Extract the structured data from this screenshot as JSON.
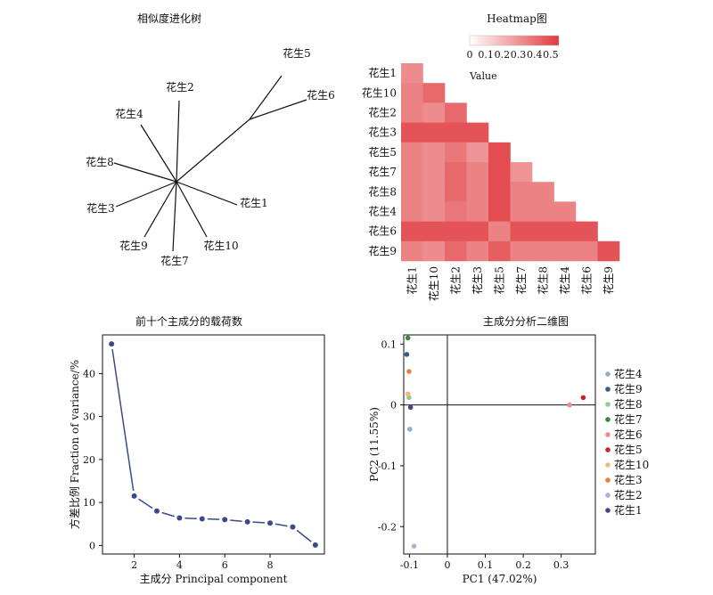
{
  "chart_data": [
    {
      "type": "tree",
      "title": "相似度进化树",
      "leaves": [
        "花生5",
        "花生6",
        "花生2",
        "花生4",
        "花生8",
        "花生3",
        "花生9",
        "花生7",
        "花生10",
        "花生1"
      ],
      "edges": [
        [
          "root",
          "n56"
        ],
        [
          "n56",
          "花生5"
        ],
        [
          "n56",
          "花生6"
        ],
        [
          "root",
          "花生2"
        ],
        [
          "root",
          "花生4"
        ],
        [
          "root",
          "花生8"
        ],
        [
          "root",
          "花生3"
        ],
        [
          "root",
          "花生9"
        ],
        [
          "root",
          "花生7"
        ],
        [
          "root",
          "花生10"
        ],
        [
          "root",
          "花生1"
        ]
      ]
    },
    {
      "type": "heatmap",
      "title": "Heatmap图",
      "rows": [
        "花生1",
        "花生10",
        "花生2",
        "花生3",
        "花生5",
        "花生7",
        "花生8",
        "花生4",
        "花生6",
        "花生9"
      ],
      "cols": [
        "花生1",
        "花生10",
        "花生2",
        "花生3",
        "花生5",
        "花生7",
        "花生8",
        "花生4",
        "花生6",
        "花生9"
      ],
      "values": [
        [
          0.32
        ],
        [
          0.35,
          0.42
        ],
        [
          0.35,
          0.32,
          0.42
        ],
        [
          0.48,
          0.48,
          0.48,
          0.48
        ],
        [
          0.35,
          0.32,
          0.38,
          0.3,
          0.5
        ],
        [
          0.35,
          0.32,
          0.42,
          0.35,
          0.5,
          0.3
        ],
        [
          0.35,
          0.32,
          0.42,
          0.35,
          0.5,
          0.35,
          0.35
        ],
        [
          0.35,
          0.32,
          0.38,
          0.35,
          0.5,
          0.35,
          0.35,
          0.35
        ],
        [
          0.48,
          0.48,
          0.48,
          0.48,
          0.35,
          0.48,
          0.48,
          0.48,
          0.48
        ],
        [
          0.35,
          0.32,
          0.42,
          0.35,
          0.45,
          0.35,
          0.35,
          0.35,
          0.35,
          0.48
        ]
      ],
      "colorbar": {
        "ticks": [
          "0",
          "0.1",
          "0.2",
          "0.3",
          "0.4",
          "0.5"
        ],
        "label": "Value",
        "range": [
          0,
          0.55
        ],
        "low_color": "#ffffff",
        "high_color": "#e03a3e"
      }
    },
    {
      "type": "line",
      "title": "前十个主成分的载荷数",
      "xlabel": "主成分 Principal component",
      "ylabel": "方差比例 Fraction of variance/%",
      "x": [
        1,
        2,
        3,
        4,
        5,
        6,
        7,
        8,
        9,
        10
      ],
      "values": [
        46.9,
        11.5,
        8.0,
        6.4,
        6.2,
        6.0,
        5.5,
        5.2,
        4.3,
        0.1
      ],
      "xticks": [
        "2",
        "4",
        "6",
        "8"
      ],
      "yticks": [
        "0",
        "10",
        "20",
        "30",
        "40"
      ],
      "xlim": [
        0.6,
        10.4
      ],
      "ylim": [
        -2,
        49
      ],
      "color": "#3b4a8c"
    },
    {
      "type": "scatter",
      "title": "主成分分析二维图",
      "xlabel": "PC1 (47.02%)",
      "ylabel": "PC2 (11.55%)",
      "xticks": [
        "-0.1",
        "0",
        "0.1",
        "0.2",
        "0.3"
      ],
      "yticks": [
        "0.1",
        "0",
        "-0.1",
        "-0.2"
      ],
      "xlim": [
        -0.115,
        0.39
      ],
      "ylim": [
        -0.245,
        0.115
      ],
      "points": [
        {
          "name": "花生4",
          "x": -0.099,
          "y": -0.04,
          "color": "#92adc5"
        },
        {
          "name": "花生9",
          "x": -0.107,
          "y": 0.083,
          "color": "#3b5a8c"
        },
        {
          "name": "花生8",
          "x": -0.101,
          "y": 0.012,
          "color": "#8fcf8f"
        },
        {
          "name": "花生7",
          "x": -0.104,
          "y": 0.11,
          "color": "#3a8a3a"
        },
        {
          "name": "花生6",
          "x": 0.322,
          "y": 0.0,
          "color": "#f08a8a"
        },
        {
          "name": "花生5",
          "x": 0.358,
          "y": 0.012,
          "color": "#c0282a"
        },
        {
          "name": "花生10",
          "x": -0.104,
          "y": 0.018,
          "color": "#f5b87a"
        },
        {
          "name": "花生3",
          "x": -0.101,
          "y": 0.055,
          "color": "#e8803a"
        },
        {
          "name": "花生2",
          "x": -0.088,
          "y": -0.232,
          "color": "#c0a8d5"
        },
        {
          "name": "花生1",
          "x": -0.097,
          "y": -0.004,
          "color": "#5a3a8a"
        }
      ]
    }
  ]
}
